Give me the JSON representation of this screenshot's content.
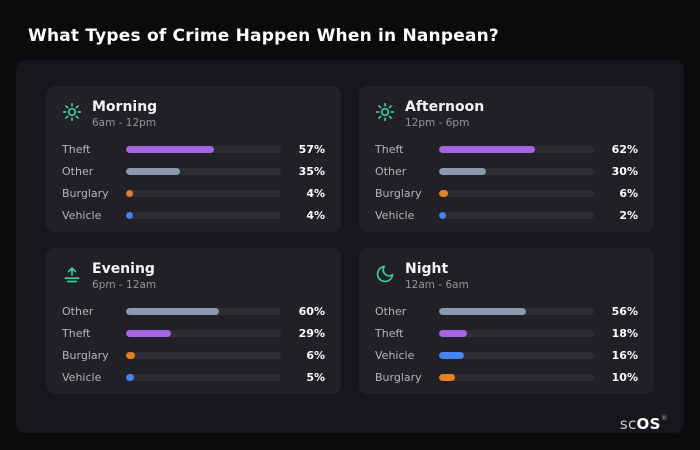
{
  "title": "What Types of Crime Happen When in Nanpean?",
  "brand": {
    "light": "sc",
    "bold": "OS",
    "registered": "®"
  },
  "colors": {
    "accent_icon": "#3ec9a0",
    "theft": "#a665e6",
    "other": "#8a99ad",
    "burglary": "#e5811f",
    "vehicle": "#4583f0",
    "bar_track": "#2d2d33",
    "panel_bg": "#202026",
    "card_bg": "#17171b",
    "page_bg": "#0b0b0d"
  },
  "chart_data": [
    {
      "type": "bar",
      "title": "Morning",
      "subtitle": "6am - 12pm",
      "icon": "sun-icon",
      "xlim": [
        0,
        100
      ],
      "rows": [
        {
          "label": "Theft",
          "value": 57,
          "pct": "57%",
          "color": "#a665e6"
        },
        {
          "label": "Other",
          "value": 35,
          "pct": "35%",
          "color": "#8a99ad"
        },
        {
          "label": "Burglary",
          "value": 4,
          "pct": "4%",
          "color": "#e5811f"
        },
        {
          "label": "Vehicle",
          "value": 4,
          "pct": "4%",
          "color": "#4583f0"
        }
      ]
    },
    {
      "type": "bar",
      "title": "Afternoon",
      "subtitle": "12pm - 6pm",
      "icon": "sun-icon",
      "xlim": [
        0,
        100
      ],
      "rows": [
        {
          "label": "Theft",
          "value": 62,
          "pct": "62%",
          "color": "#a665e6"
        },
        {
          "label": "Other",
          "value": 30,
          "pct": "30%",
          "color": "#8a99ad"
        },
        {
          "label": "Burglary",
          "value": 6,
          "pct": "6%",
          "color": "#e5811f"
        },
        {
          "label": "Vehicle",
          "value": 2,
          "pct": "2%",
          "color": "#4583f0"
        }
      ]
    },
    {
      "type": "bar",
      "title": "Evening",
      "subtitle": "6pm - 12am",
      "icon": "sunset-icon",
      "xlim": [
        0,
        100
      ],
      "rows": [
        {
          "label": "Other",
          "value": 60,
          "pct": "60%",
          "color": "#8a99ad"
        },
        {
          "label": "Theft",
          "value": 29,
          "pct": "29%",
          "color": "#a665e6"
        },
        {
          "label": "Burglary",
          "value": 6,
          "pct": "6%",
          "color": "#e5811f"
        },
        {
          "label": "Vehicle",
          "value": 5,
          "pct": "5%",
          "color": "#4583f0"
        }
      ]
    },
    {
      "type": "bar",
      "title": "Night",
      "subtitle": "12am - 6am",
      "icon": "moon-icon",
      "xlim": [
        0,
        100
      ],
      "rows": [
        {
          "label": "Other",
          "value": 56,
          "pct": "56%",
          "color": "#8a99ad"
        },
        {
          "label": "Theft",
          "value": 18,
          "pct": "18%",
          "color": "#a665e6"
        },
        {
          "label": "Vehicle",
          "value": 16,
          "pct": "16%",
          "color": "#4583f0"
        },
        {
          "label": "Burglary",
          "value": 10,
          "pct": "10%",
          "color": "#e5811f"
        }
      ]
    }
  ]
}
